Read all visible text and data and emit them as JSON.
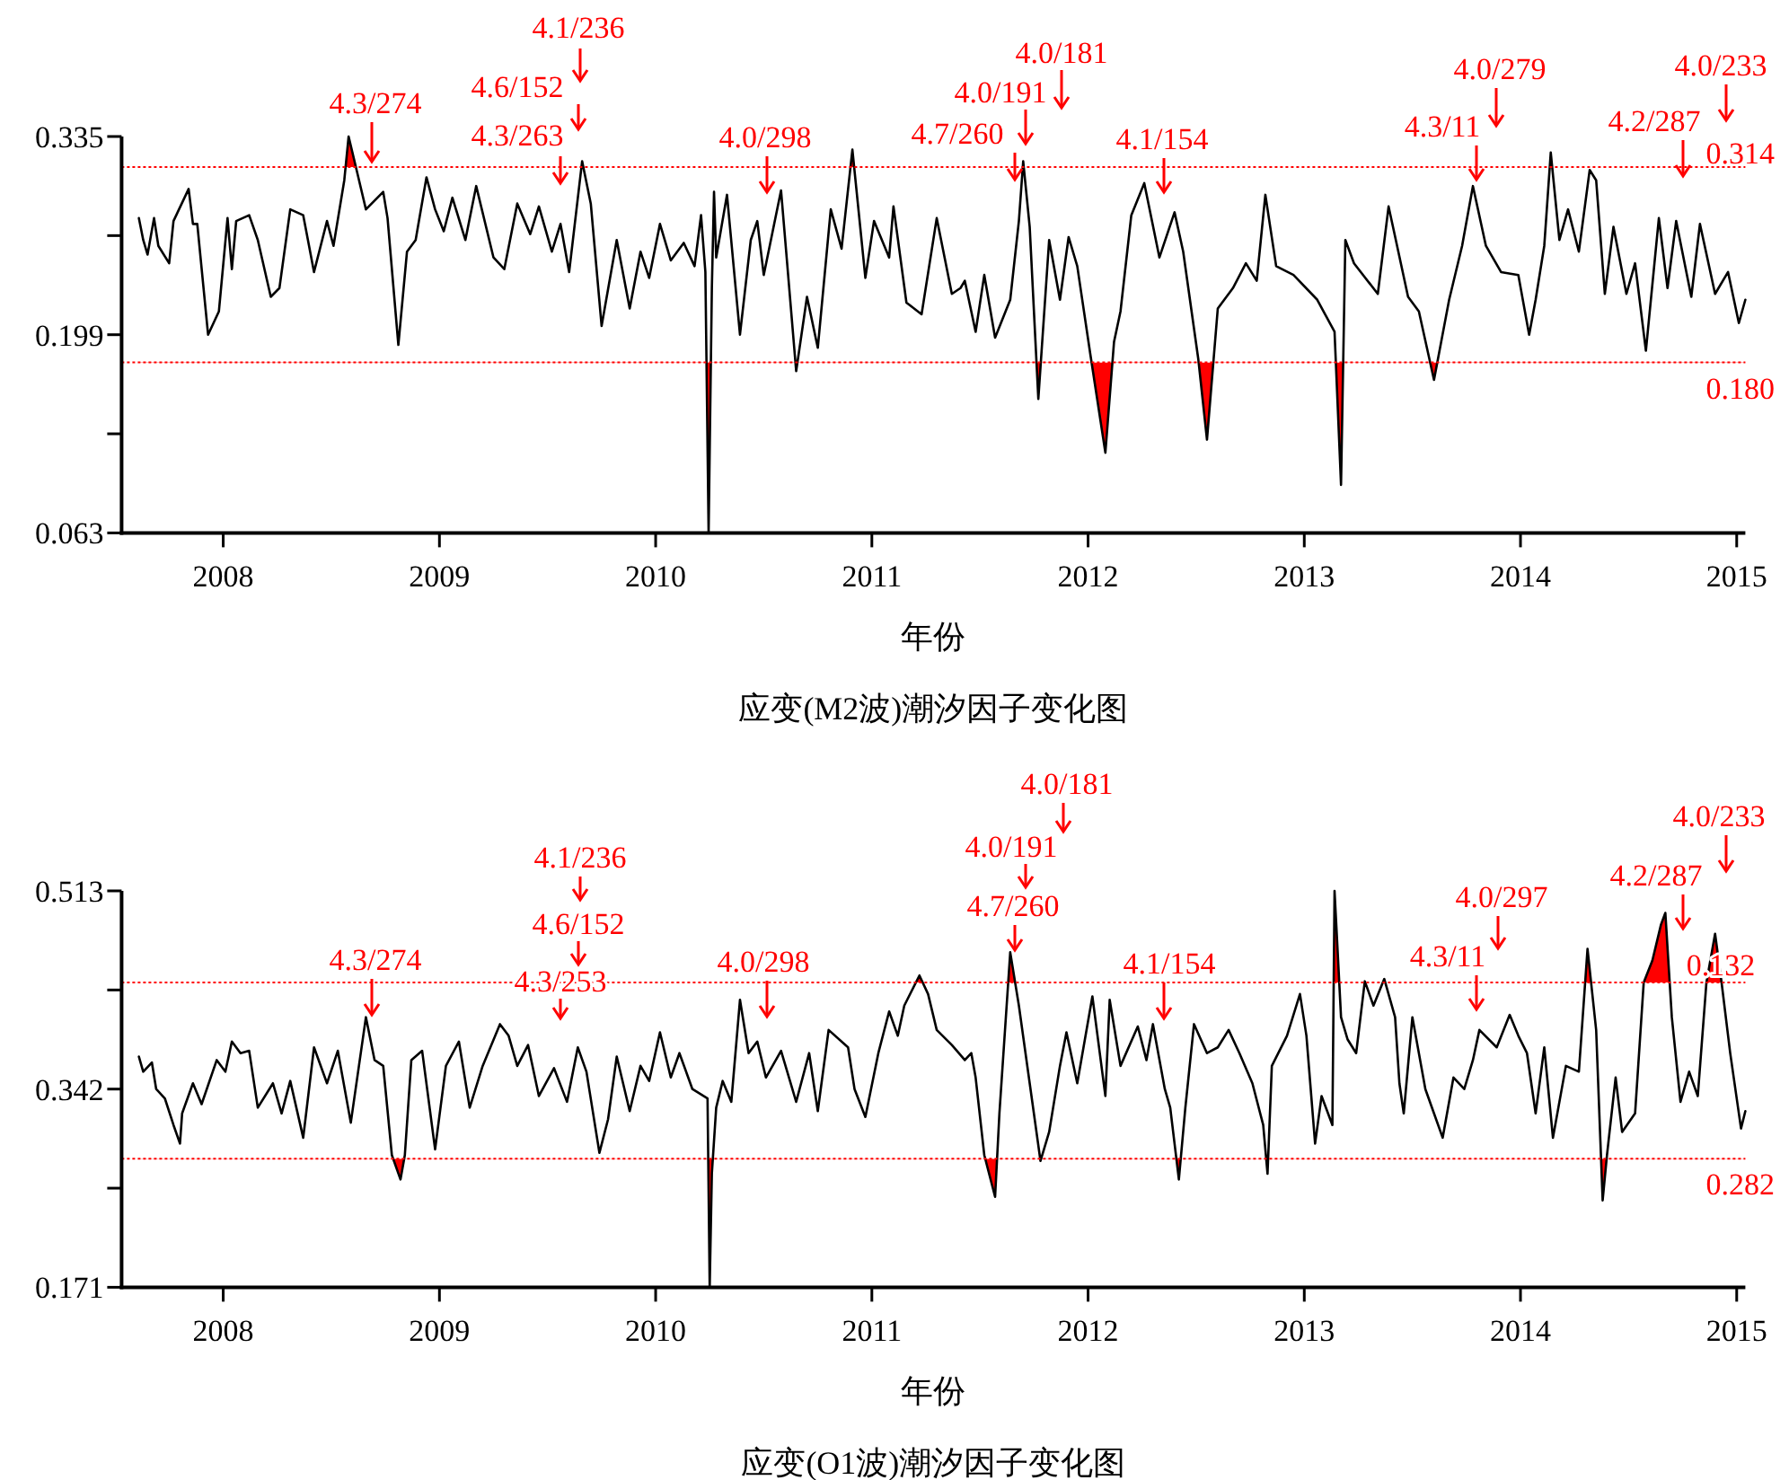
{
  "chart_data": [
    {
      "type": "line",
      "title": "应变(M2波)潮汐因子变化图",
      "xlabel": "年份",
      "xlim": [
        2007.53,
        2015.04
      ],
      "xticks": [
        2008,
        2009,
        2010,
        2011,
        2012,
        2013,
        2014,
        2015
      ],
      "ylim": [
        0.063,
        0.335
      ],
      "yticks": [
        0.063,
        {
          "value": 0.131,
          "label": null
        },
        0.199,
        {
          "value": 0.267,
          "label": null
        },
        0.335
      ],
      "x": [
        2007.61,
        2007.63,
        2007.65,
        2007.68,
        2007.7,
        2007.75,
        2007.77,
        2007.84,
        2007.86,
        2007.88,
        2007.93,
        2007.98,
        2008.02,
        2008.04,
        2008.06,
        2008.12,
        2008.16,
        2008.22,
        2008.26,
        2008.31,
        2008.37,
        2008.42,
        2008.48,
        2008.51,
        2008.56,
        2008.58,
        2008.62,
        2008.66,
        2008.74,
        2008.76,
        2008.81,
        2008.85,
        2008.89,
        2008.94,
        2008.98,
        2009.02,
        2009.06,
        2009.12,
        2009.17,
        2009.25,
        2009.3,
        2009.36,
        2009.42,
        2009.46,
        2009.52,
        2009.56,
        2009.6,
        2009.66,
        2009.7,
        2009.75,
        2009.82,
        2009.88,
        2009.93,
        2009.97,
        2010.02,
        2010.07,
        2010.13,
        2010.18,
        2010.21,
        2010.23,
        2010.245,
        2010.26,
        2010.27,
        2010.28,
        2010.33,
        2010.39,
        2010.44,
        2010.47,
        2010.5,
        2010.58,
        2010.65,
        2010.7,
        2010.75,
        2010.81,
        2010.86,
        2010.91,
        2010.97,
        2011.01,
        2011.08,
        2011.1,
        2011.16,
        2011.23,
        2011.3,
        2011.37,
        2011.41,
        2011.43,
        2011.48,
        2011.52,
        2011.57,
        2011.64,
        2011.68,
        2011.7,
        2011.73,
        2011.77,
        2011.82,
        2011.87,
        2011.91,
        2011.95,
        2012.01,
        2012.08,
        2012.12,
        2012.15,
        2012.2,
        2012.26,
        2012.33,
        2012.4,
        2012.44,
        2012.51,
        2012.55,
        2012.6,
        2012.67,
        2012.73,
        2012.78,
        2012.82,
        2012.87,
        2012.95,
        2013.06,
        2013.14,
        2013.17,
        2013.19,
        2013.23,
        2013.34,
        2013.39,
        2013.48,
        2013.53,
        2013.6,
        2013.67,
        2013.73,
        2013.78,
        2013.84,
        2013.91,
        2013.99,
        2014.04,
        2014.07,
        2014.11,
        2014.14,
        2014.18,
        2014.22,
        2014.27,
        2014.32,
        2014.35,
        2014.39,
        2014.43,
        2014.49,
        2014.53,
        2014.58,
        2014.64,
        2014.68,
        2014.72,
        2014.79,
        2014.83,
        2014.9,
        2014.96,
        2015.01,
        2015.04
      ],
      "series": [
        {
          "color": "#000000",
          "values": [
            0.279,
            0.264,
            0.254,
            0.279,
            0.26,
            0.248,
            0.277,
            0.299,
            0.275,
            0.275,
            0.199,
            0.215,
            0.279,
            0.244,
            0.277,
            0.281,
            0.264,
            0.225,
            0.231,
            0.285,
            0.281,
            0.242,
            0.277,
            0.26,
            0.305,
            0.335,
            0.31,
            0.285,
            0.297,
            0.279,
            0.192,
            0.256,
            0.264,
            0.307,
            0.285,
            0.27,
            0.293,
            0.264,
            0.301,
            0.252,
            0.244,
            0.289,
            0.268,
            0.287,
            0.256,
            0.275,
            0.242,
            0.318,
            0.289,
            0.205,
            0.264,
            0.217,
            0.256,
            0.238,
            0.275,
            0.25,
            0.262,
            0.246,
            0.281,
            0.242,
            0.063,
            0.231,
            0.297,
            0.252,
            0.295,
            0.199,
            0.264,
            0.277,
            0.24,
            0.298,
            0.174,
            0.225,
            0.19,
            0.285,
            0.258,
            0.326,
            0.238,
            0.277,
            0.252,
            0.287,
            0.221,
            0.213,
            0.279,
            0.227,
            0.231,
            0.236,
            0.201,
            0.24,
            0.197,
            0.223,
            0.277,
            0.318,
            0.273,
            0.155,
            0.264,
            0.223,
            0.266,
            0.246,
            0.186,
            0.118,
            0.194,
            0.215,
            0.281,
            0.303,
            0.252,
            0.283,
            0.256,
            0.182,
            0.127,
            0.217,
            0.231,
            0.248,
            0.236,
            0.295,
            0.246,
            0.24,
            0.223,
            0.201,
            0.096,
            0.264,
            0.248,
            0.227,
            0.287,
            0.225,
            0.215,
            0.168,
            0.223,
            0.26,
            0.301,
            0.26,
            0.242,
            0.24,
            0.199,
            0.223,
            0.26,
            0.324,
            0.264,
            0.285,
            0.256,
            0.312,
            0.305,
            0.227,
            0.273,
            0.227,
            0.248,
            0.188,
            0.279,
            0.231,
            0.277,
            0.225,
            0.275,
            0.227,
            0.242,
            0.207,
            0.223
          ]
        }
      ],
      "ref_lines": [
        {
          "axis": "y",
          "value": 0.314,
          "label": "0.314",
          "color": "#ff0000",
          "line_style": "dotted"
        },
        {
          "axis": "y",
          "value": 0.18,
          "label": "0.180",
          "color": "#ff0000",
          "line_style": "dotted"
        }
      ],
      "annotations": [
        "4.3/274",
        "4.3/263",
        "4.6/152",
        "4.1/236",
        "4.0/298",
        "4.7/260",
        "4.0/191",
        "4.0/181",
        "4.1/154",
        "4.3/11",
        "4.0/279",
        "4.2/287",
        "4.0/233"
      ]
    },
    {
      "type": "line",
      "title": "应变(O1波)潮汐因子变化图",
      "xlabel": "年份",
      "xlim": [
        2007.53,
        2015.04
      ],
      "xticks": [
        2008,
        2009,
        2010,
        2011,
        2012,
        2013,
        2014,
        2015
      ],
      "ylim": [
        0.171,
        0.513
      ],
      "yticks": [
        0.171,
        {
          "value": 0.2565,
          "label": null
        },
        0.342,
        {
          "value": 0.4275,
          "label": null
        },
        0.513
      ],
      "x": [
        2007.61,
        2007.63,
        2007.67,
        2007.69,
        2007.73,
        2007.77,
        2007.8,
        2007.81,
        2007.86,
        2007.9,
        2007.97,
        2008.01,
        2008.04,
        2008.08,
        2008.12,
        2008.16,
        2008.23,
        2008.27,
        2008.31,
        2008.37,
        2008.42,
        2008.48,
        2008.53,
        2008.59,
        2008.66,
        2008.7,
        2008.74,
        2008.78,
        2008.82,
        2008.84,
        2008.87,
        2008.92,
        2008.98,
        2009.03,
        2009.09,
        2009.14,
        2009.2,
        2009.28,
        2009.32,
        2009.36,
        2009.41,
        2009.46,
        2009.53,
        2009.59,
        2009.64,
        2009.68,
        2009.74,
        2009.78,
        2009.82,
        2009.88,
        2009.93,
        2009.97,
        2010.02,
        2010.07,
        2010.11,
        2010.17,
        2010.24,
        2010.25,
        2010.26,
        2010.28,
        2010.31,
        2010.35,
        2010.39,
        2010.43,
        2010.47,
        2010.51,
        2010.58,
        2010.65,
        2010.71,
        2010.75,
        2010.8,
        2010.89,
        2010.92,
        2010.97,
        2011.03,
        2011.08,
        2011.12,
        2011.15,
        2011.22,
        2011.26,
        2011.3,
        2011.37,
        2011.43,
        2011.46,
        2011.48,
        2011.52,
        2011.57,
        2011.59,
        2011.64,
        2011.68,
        2011.73,
        2011.78,
        2011.82,
        2011.87,
        2011.9,
        2011.95,
        2012.02,
        2012.08,
        2012.1,
        2012.15,
        2012.23,
        2012.27,
        2012.3,
        2012.355,
        2012.38,
        2012.42,
        2012.45,
        2012.49,
        2012.55,
        2012.6,
        2012.65,
        2012.7,
        2012.76,
        2012.81,
        2012.83,
        2012.85,
        2012.92,
        2012.98,
        2013.01,
        2013.05,
        2013.08,
        2013.13,
        2013.14,
        2013.17,
        2013.2,
        2013.24,
        2013.28,
        2013.32,
        2013.37,
        2013.42,
        2013.44,
        2013.46,
        2013.5,
        2013.56,
        2013.6,
        2013.64,
        2013.69,
        2013.74,
        2013.78,
        2013.81,
        2013.89,
        2013.95,
        2013.99,
        2014.03,
        2014.07,
        2014.11,
        2014.15,
        2014.21,
        2014.27,
        2014.31,
        2014.35,
        2014.38,
        2014.4,
        2014.44,
        2014.47,
        2014.53,
        2014.57,
        2014.61,
        2014.65,
        2014.67,
        2014.7,
        2014.74,
        2014.78,
        2014.82,
        2014.86,
        2014.9,
        2014.93,
        2014.97,
        2015.02,
        2015.04
      ],
      "series": [
        {
          "color": "#000000",
          "values": [
            0.37,
            0.357,
            0.365,
            0.342,
            0.334,
            0.311,
            0.295,
            0.321,
            0.347,
            0.329,
            0.367,
            0.357,
            0.383,
            0.373,
            0.375,
            0.326,
            0.347,
            0.321,
            0.349,
            0.3,
            0.378,
            0.347,
            0.375,
            0.313,
            0.404,
            0.367,
            0.362,
            0.285,
            0.264,
            0.285,
            0.367,
            0.375,
            0.29,
            0.362,
            0.383,
            0.326,
            0.362,
            0.398,
            0.388,
            0.362,
            0.38,
            0.336,
            0.36,
            0.331,
            0.378,
            0.357,
            0.287,
            0.316,
            0.37,
            0.323,
            0.362,
            0.349,
            0.391,
            0.352,
            0.373,
            0.342,
            0.334,
            0.171,
            0.269,
            0.326,
            0.349,
            0.331,
            0.419,
            0.373,
            0.383,
            0.352,
            0.375,
            0.331,
            0.373,
            0.323,
            0.393,
            0.378,
            0.342,
            0.318,
            0.373,
            0.409,
            0.388,
            0.414,
            0.44,
            0.424,
            0.393,
            0.38,
            0.367,
            0.373,
            0.352,
            0.285,
            0.249,
            0.321,
            0.46,
            0.414,
            0.347,
            0.28,
            0.305,
            0.362,
            0.391,
            0.347,
            0.422,
            0.336,
            0.419,
            0.362,
            0.396,
            0.367,
            0.398,
            0.342,
            0.326,
            0.264,
            0.326,
            0.398,
            0.373,
            0.378,
            0.393,
            0.373,
            0.347,
            0.311,
            0.269,
            0.362,
            0.388,
            0.424,
            0.388,
            0.295,
            0.336,
            0.311,
            0.513,
            0.404,
            0.385,
            0.373,
            0.435,
            0.414,
            0.437,
            0.404,
            0.347,
            0.321,
            0.404,
            0.342,
            0.321,
            0.3,
            0.352,
            0.342,
            0.367,
            0.393,
            0.378,
            0.406,
            0.388,
            0.373,
            0.321,
            0.378,
            0.3,
            0.362,
            0.357,
            0.463,
            0.393,
            0.246,
            0.285,
            0.352,
            0.305,
            0.321,
            0.434,
            0.453,
            0.484,
            0.494,
            0.404,
            0.331,
            0.357,
            0.336,
            0.434,
            0.476,
            0.434,
            0.373,
            0.308,
            0.323
          ]
        }
      ],
      "ref_lines": [
        {
          "axis": "y",
          "value": 0.434,
          "color": "#ff0000",
          "line_style": "dotted"
        },
        {
          "axis": "y",
          "value": 0.282,
          "label": "0.282",
          "color": "#ff0000",
          "line_style": "dotted"
        }
      ],
      "annotations": [
        "4.3/274",
        "4.3/253",
        "4.6/152",
        "4.1/236",
        "4.0/298",
        "4.7/260",
        "4.0/191",
        "4.0/181",
        "4.1/154",
        "4.3/11",
        "4.0/297",
        "4.2/287",
        "4.0/233",
        "0.132"
      ]
    }
  ]
}
